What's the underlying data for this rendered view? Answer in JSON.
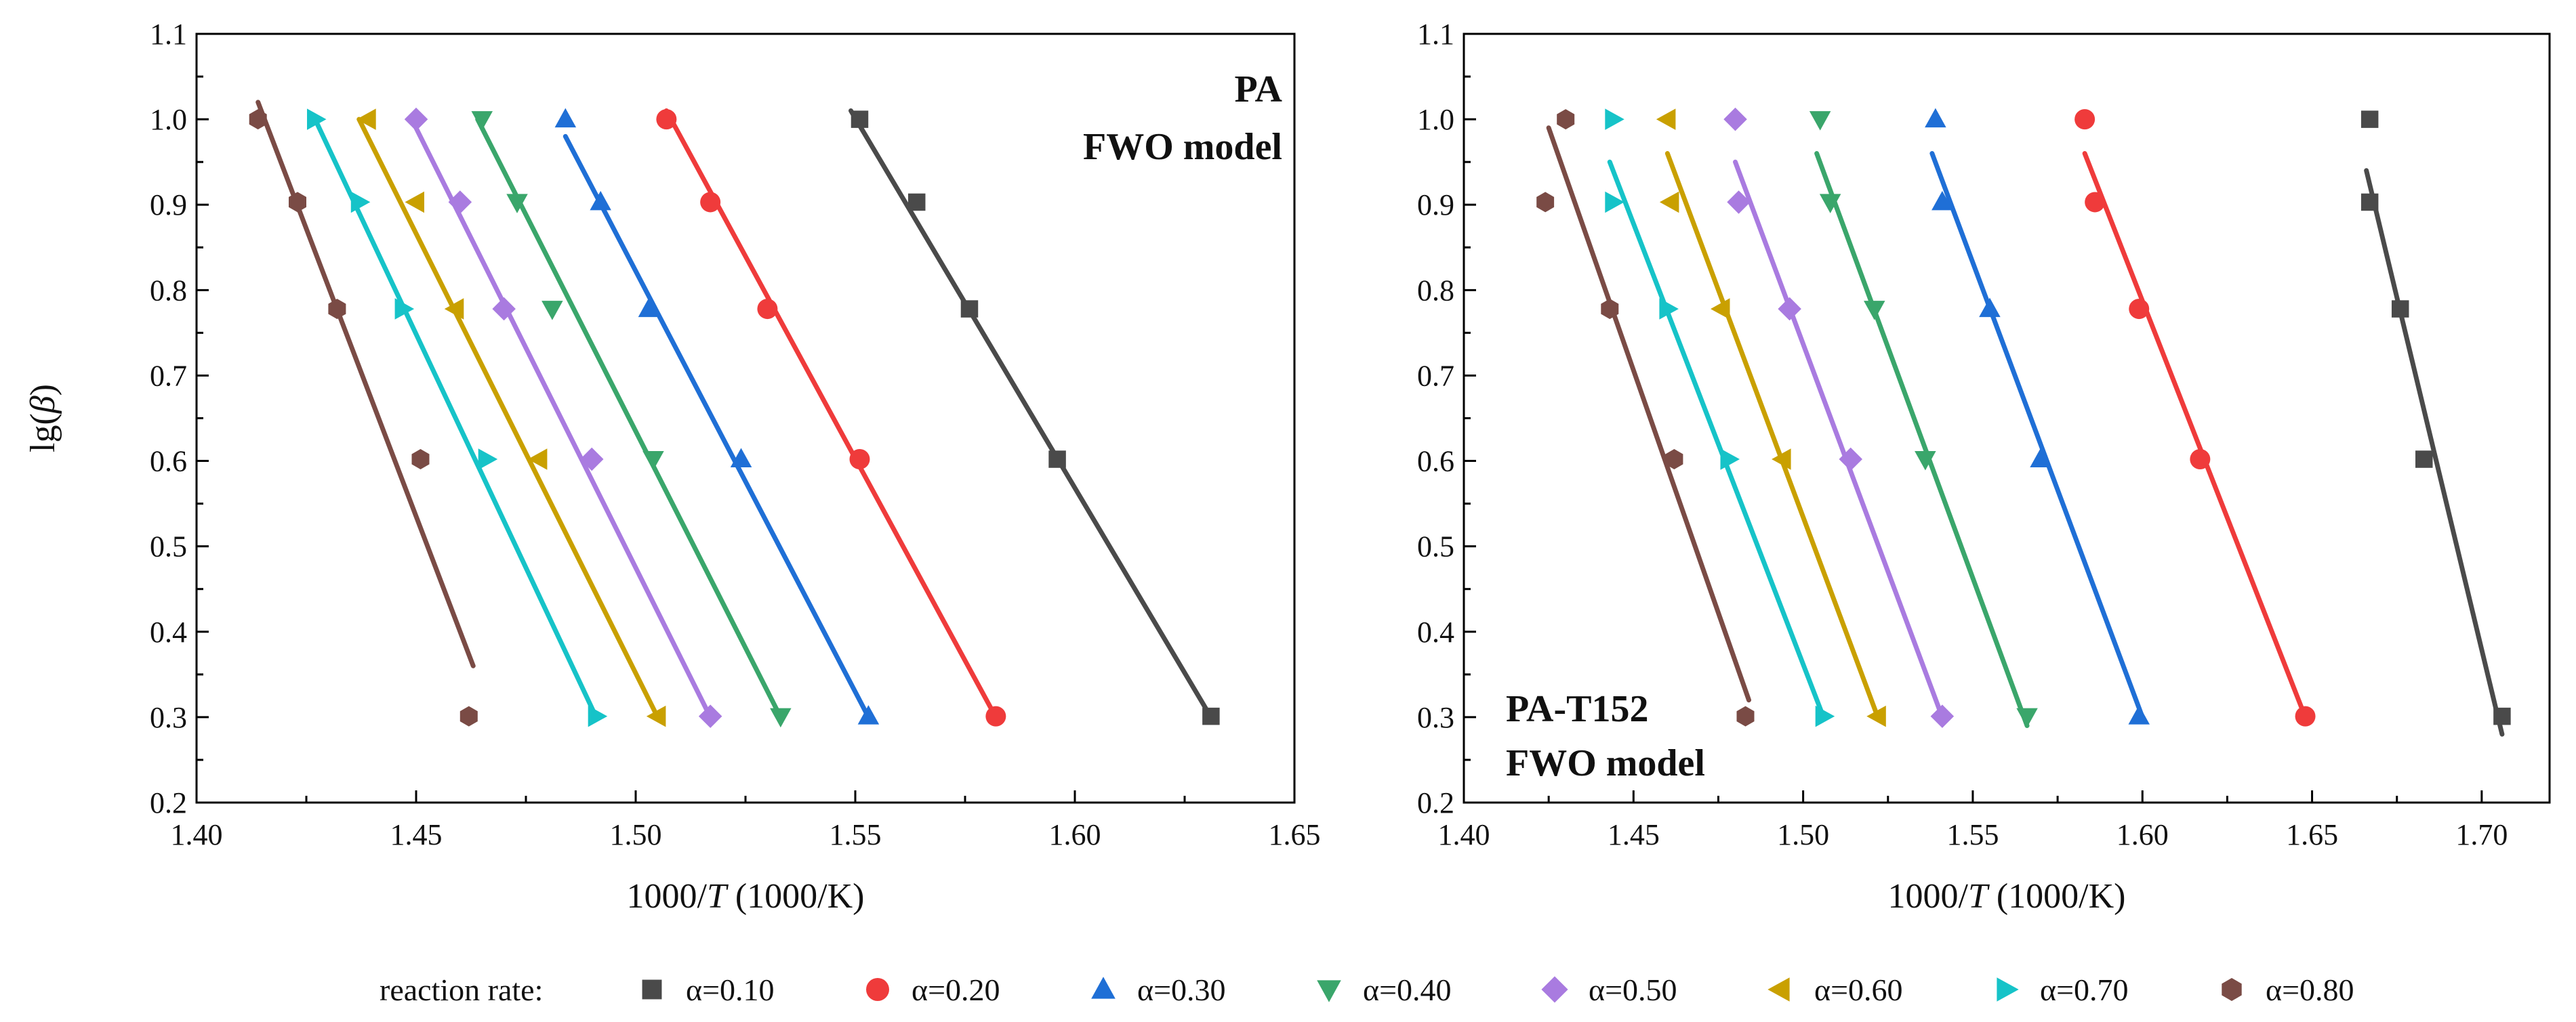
{
  "legend": {
    "title": "reaction rate:",
    "colors": {
      "α=0.10": "#4a4a4a",
      "α=0.20": "#ef3b3b",
      "α=0.30": "#1f6fd6",
      "α=0.40": "#3aa66b",
      "α=0.50": "#a97be0",
      "α=0.60": "#c9a000",
      "α=0.70": "#16c3c8",
      "α=0.80": "#7a4b45"
    },
    "markers": {
      "α=0.10": "square",
      "α=0.20": "circle",
      "α=0.30": "triangle-up",
      "α=0.40": "triangle-down",
      "α=0.50": "diamond",
      "α=0.60": "triangle-left",
      "α=0.70": "triangle-right",
      "α=0.80": "hexagon"
    }
  },
  "chart_data": [
    {
      "type": "scatter",
      "title_lines": [
        "PA",
        "FWO model"
      ],
      "xlabel_prefix": "1000/",
      "xlabel_var": "T",
      "xlabel_suffix": " (1000/K)",
      "ylabel_prefix": "lg(",
      "ylabel_var": "β",
      "ylabel_suffix": ")",
      "xlim": [
        1.4,
        1.65
      ],
      "ylim": [
        0.2,
        1.1
      ],
      "xticks": [
        "1.40",
        "1.45",
        "1.50",
        "1.55",
        "1.60",
        "1.65"
      ],
      "yticks": [
        "0.2",
        "0.3",
        "0.4",
        "0.5",
        "0.6",
        "0.7",
        "0.8",
        "0.9",
        "1.0",
        "1.1"
      ],
      "series": [
        {
          "name": "α=0.10",
          "x": [
            1.551,
            1.564,
            1.576,
            1.596,
            1.631
          ],
          "y": [
            1.0,
            0.903,
            0.778,
            0.602,
            0.301
          ],
          "fit": [
            [
              1.549,
              1.01
            ],
            [
              1.631,
              0.3
            ]
          ]
        },
        {
          "name": "α=0.20",
          "x": [
            1.507,
            1.517,
            1.53,
            1.551,
            1.582
          ],
          "y": [
            1.0,
            0.903,
            0.778,
            0.602,
            0.301
          ],
          "fit": [
            [
              1.507,
              1.01
            ],
            [
              1.582,
              0.3
            ]
          ]
        },
        {
          "name": "α=0.30",
          "x": [
            1.484,
            1.492,
            1.503,
            1.524,
            1.553
          ],
          "y": [
            1.0,
            0.903,
            0.778,
            0.602,
            0.301
          ],
          "fit": [
            [
              1.484,
              0.98
            ],
            [
              1.553,
              0.3
            ]
          ]
        },
        {
          "name": "α=0.40",
          "x": [
            1.465,
            1.473,
            1.481,
            1.504,
            1.533
          ],
          "y": [
            1.0,
            0.903,
            0.778,
            0.602,
            0.301
          ],
          "fit": [
            [
              1.464,
              1.0
            ],
            [
              1.533,
              0.3
            ]
          ]
        },
        {
          "name": "α=0.50",
          "x": [
            1.45,
            1.46,
            1.47,
            1.49,
            1.517
          ],
          "y": [
            1.0,
            0.903,
            0.778,
            0.602,
            0.301
          ],
          "fit": [
            [
              1.449,
              1.0
            ],
            [
              1.517,
              0.3
            ]
          ]
        },
        {
          "name": "α=0.60",
          "x": [
            1.439,
            1.45,
            1.459,
            1.478,
            1.505
          ],
          "y": [
            1.0,
            0.903,
            0.778,
            0.602,
            0.301
          ],
          "fit": [
            [
              1.437,
              1.0
            ],
            [
              1.505,
              0.3
            ]
          ]
        },
        {
          "name": "α=0.70",
          "x": [
            1.427,
            1.437,
            1.447,
            1.466,
            1.491
          ],
          "y": [
            1.0,
            0.903,
            0.778,
            0.602,
            0.301
          ],
          "fit": [
            [
              1.427,
              1.0
            ],
            [
              1.491,
              0.3
            ]
          ]
        },
        {
          "name": "α=0.80",
          "x": [
            1.414,
            1.423,
            1.432,
            1.451,
            1.462
          ],
          "y": [
            1.0,
            0.903,
            0.778,
            0.602,
            0.301
          ],
          "fit": [
            [
              1.414,
              1.02
            ],
            [
              1.463,
              0.36
            ]
          ]
        }
      ]
    },
    {
      "type": "scatter",
      "title_lines": [
        "PA-T152",
        "FWO model"
      ],
      "xlabel_prefix": "1000/",
      "xlabel_var": "T",
      "xlabel_suffix": " (1000/K)",
      "xlim": [
        1.4,
        1.72
      ],
      "ylim": [
        0.2,
        1.1
      ],
      "xticks": [
        "1.40",
        "1.45",
        "1.50",
        "1.55",
        "1.60",
        "1.65",
        "1.70"
      ],
      "yticks": [
        "0.2",
        "0.3",
        "0.4",
        "0.5",
        "0.6",
        "0.7",
        "0.8",
        "0.9",
        "1.0",
        "1.1"
      ],
      "series": [
        {
          "name": "α=0.10",
          "x": [
            1.667,
            1.667,
            1.676,
            1.683,
            1.706
          ],
          "y": [
            1.0,
            0.903,
            0.778,
            0.602,
            0.301
          ],
          "fit": [
            [
              1.666,
              0.94
            ],
            [
              1.706,
              0.28
            ]
          ]
        },
        {
          "name": "α=0.20",
          "x": [
            1.583,
            1.586,
            1.599,
            1.617,
            1.648
          ],
          "y": [
            1.0,
            0.903,
            0.778,
            0.602,
            0.301
          ],
          "fit": [
            [
              1.583,
              0.96
            ],
            [
              1.648,
              0.3
            ]
          ]
        },
        {
          "name": "α=0.30",
          "x": [
            1.539,
            1.541,
            1.555,
            1.57,
            1.599
          ],
          "y": [
            1.0,
            0.903,
            0.778,
            0.602,
            0.301
          ],
          "fit": [
            [
              1.538,
              0.96
            ],
            [
              1.6,
              0.3
            ]
          ]
        },
        {
          "name": "α=0.40",
          "x": [
            1.505,
            1.508,
            1.521,
            1.536,
            1.566
          ],
          "y": [
            1.0,
            0.903,
            0.778,
            0.602,
            0.301
          ],
          "fit": [
            [
              1.504,
              0.96
            ],
            [
              1.566,
              0.29
            ]
          ]
        },
        {
          "name": "α=0.50",
          "x": [
            1.48,
            1.481,
            1.496,
            1.514,
            1.541
          ],
          "y": [
            1.0,
            0.903,
            0.778,
            0.602,
            0.301
          ],
          "fit": [
            [
              1.48,
              0.95
            ],
            [
              1.541,
              0.3
            ]
          ]
        },
        {
          "name": "α=0.60",
          "x": [
            1.46,
            1.461,
            1.476,
            1.494,
            1.522
          ],
          "y": [
            1.0,
            0.903,
            0.778,
            0.602,
            0.301
          ],
          "fit": [
            [
              1.46,
              0.96
            ],
            [
              1.522,
              0.3
            ]
          ]
        },
        {
          "name": "α=0.70",
          "x": [
            1.444,
            1.444,
            1.46,
            1.478,
            1.506
          ],
          "y": [
            1.0,
            0.903,
            0.778,
            0.602,
            0.301
          ],
          "fit": [
            [
              1.443,
              0.95
            ],
            [
              1.506,
              0.3
            ]
          ]
        },
        {
          "name": "α=0.80",
          "x": [
            1.43,
            1.424,
            1.443,
            1.462,
            1.483
          ],
          "y": [
            1.0,
            0.903,
            0.778,
            0.602,
            0.301
          ],
          "fit": [
            [
              1.425,
              0.99
            ],
            [
              1.484,
              0.32
            ]
          ]
        }
      ]
    }
  ]
}
